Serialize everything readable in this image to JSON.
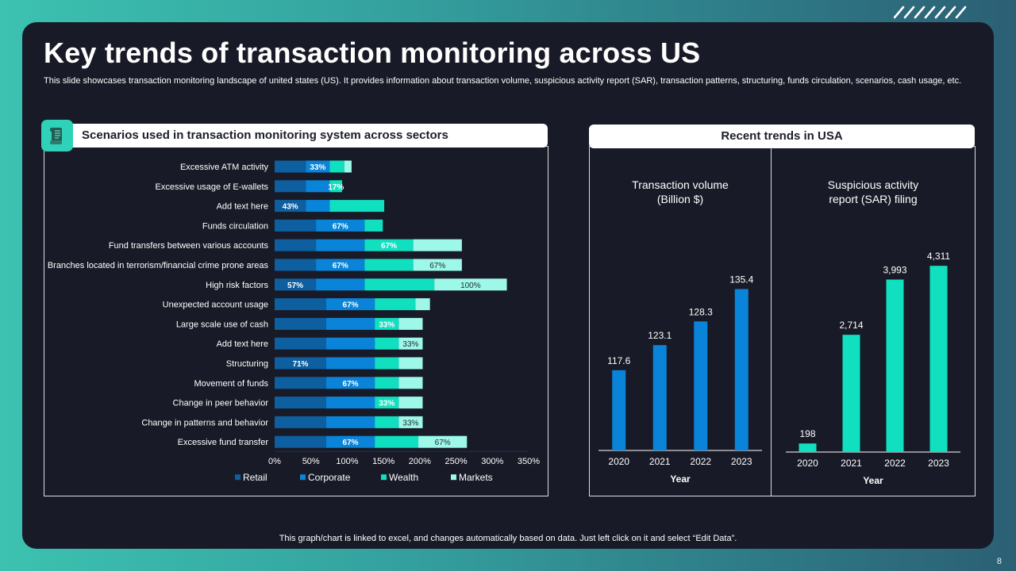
{
  "slide": {
    "title": "Key trends of transaction monitoring across US",
    "subtitle": "This slide showcases transaction monitoring landscape of united states (US). It provides information about transaction volume, suspicious activity report (SAR), transaction patterns, structuring, funds circulation, scenarios, cash usage, etc.",
    "footer": "This graph/chart is linked to excel,  and changes automatically based on data. Just left click on it and select “Edit Data”.",
    "page_number": "8",
    "left_header": "Scenarios used in transaction monitoring system across sectors",
    "right_header": "Recent trends in USA",
    "icon": "document-scroll-icon"
  },
  "colors": {
    "retail": "#0d5fa0",
    "corporate": "#0a84d8",
    "wealth": "#10e0c0",
    "markets": "#9ef8ea",
    "volume_bar": "#0a84d8",
    "sar_bar": "#10e0c0"
  },
  "chart_data": [
    {
      "type": "bar",
      "orientation": "horizontal",
      "stacked": true,
      "title": "Scenarios used in transaction monitoring system across sectors",
      "categories": [
        "Excessive ATM activity",
        "Excessive usage of E-wallets",
        "Add text here",
        "Funds circulation",
        "Fund transfers between various accounts",
        "Branches located in terrorism/financial crime prone areas",
        "High risk factors",
        "Unexpected account usage",
        "Large scale use of cash",
        "Add text here",
        "Structuring",
        "Movement of funds",
        "Change in peer behavior",
        "Change in patterns and behavior",
        "Excessive fund transfer"
      ],
      "series": [
        {
          "name": "Retail",
          "values": [
            43,
            43,
            43,
            57,
            57,
            57,
            57,
            71,
            71,
            71,
            71,
            71,
            71,
            71,
            71
          ]
        },
        {
          "name": "Corporate",
          "values": [
            33,
            33,
            33,
            67,
            67,
            67,
            67,
            67,
            67,
            67,
            67,
            67,
            67,
            67,
            67
          ]
        },
        {
          "name": "Wealth",
          "values": [
            20,
            17,
            75,
            25,
            67,
            67,
            96,
            56,
            33,
            33,
            33,
            33,
            33,
            33,
            60
          ]
        },
        {
          "name": "Markets",
          "values": [
            10,
            0,
            0,
            0,
            67,
            67,
            100,
            20,
            33,
            33,
            33,
            33,
            33,
            33,
            67
          ]
        }
      ],
      "data_labels": [
        {
          "row": 0,
          "series": "Corporate",
          "text": "33%"
        },
        {
          "row": 1,
          "series": "Wealth",
          "text": "17%"
        },
        {
          "row": 2,
          "series": "Retail",
          "text": "43%"
        },
        {
          "row": 3,
          "series": "Corporate",
          "text": "67%"
        },
        {
          "row": 4,
          "series": "Wealth",
          "text": "67%"
        },
        {
          "row": 5,
          "series": "Corporate",
          "text": "67%"
        },
        {
          "row": 5,
          "series": "Markets",
          "text": "67%"
        },
        {
          "row": 6,
          "series": "Retail",
          "text": "57%"
        },
        {
          "row": 6,
          "series": "Markets",
          "text": "100%"
        },
        {
          "row": 7,
          "series": "Corporate",
          "text": "67%"
        },
        {
          "row": 8,
          "series": "Wealth",
          "text": "33%"
        },
        {
          "row": 9,
          "series": "Markets",
          "text": "33%"
        },
        {
          "row": 10,
          "series": "Retail",
          "text": "71%"
        },
        {
          "row": 11,
          "series": "Corporate",
          "text": "67%"
        },
        {
          "row": 12,
          "series": "Wealth",
          "text": "33%"
        },
        {
          "row": 13,
          "series": "Markets",
          "text": "33%"
        },
        {
          "row": 14,
          "series": "Corporate",
          "text": "67%"
        },
        {
          "row": 14,
          "series": "Markets",
          "text": "67%"
        }
      ],
      "xlim": [
        0,
        350
      ],
      "xticks": [
        "0%",
        "50%",
        "100%",
        "150%",
        "200%",
        "250%",
        "300%",
        "350%"
      ],
      "legend": [
        "Retail",
        "Corporate",
        "Wealth",
        "Markets"
      ],
      "legend_position": "bottom",
      "grid": false
    },
    {
      "type": "bar",
      "title": "Transaction volume\n(Billion $)",
      "title_lines": [
        "Transaction volume",
        "(Billion $)"
      ],
      "categories": [
        "2020",
        "2021",
        "2022",
        "2023"
      ],
      "values": [
        117.6,
        123.1,
        128.3,
        135.4
      ],
      "labels": [
        "117.6",
        "123.1",
        "128.3",
        "135.4"
      ],
      "xlabel": "Year",
      "ylim": [
        100,
        140
      ]
    },
    {
      "type": "bar",
      "title": "Suspicious activity\nreport (SAR) filing",
      "title_lines": [
        "Suspicious activity",
        "report (SAR) filing"
      ],
      "categories": [
        "2020",
        "2021",
        "2022",
        "2023"
      ],
      "values": [
        198,
        2714,
        3993,
        4311
      ],
      "labels": [
        "198",
        "2,714",
        "3,993",
        "4,311"
      ],
      "xlabel": "Year",
      "ylim": [
        0,
        4700
      ]
    }
  ]
}
